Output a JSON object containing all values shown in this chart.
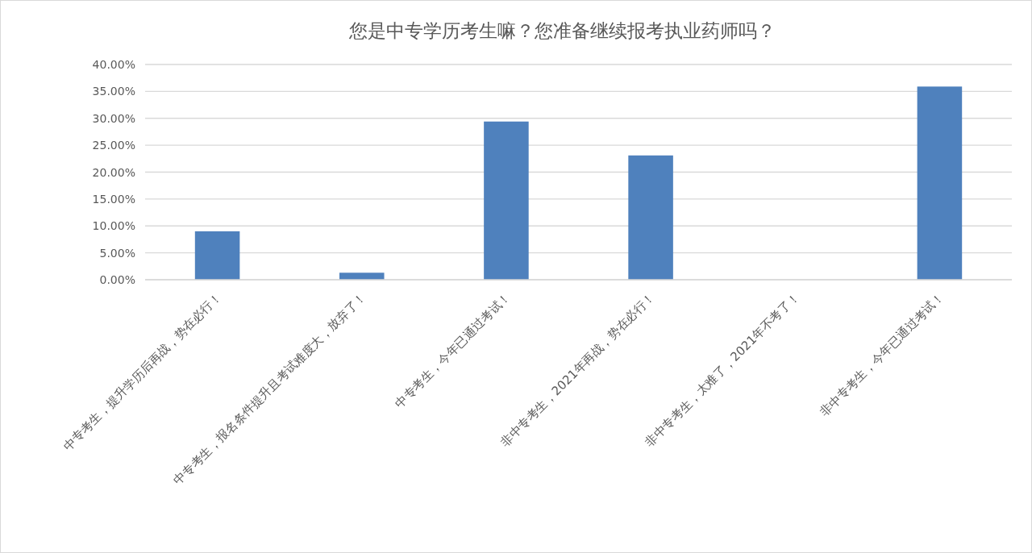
{
  "chart_data": {
    "type": "bar",
    "title": "您是中专学历考生嘛？您准备继续报考执业药师吗？",
    "categories": [
      "中专考生，提升学历后再战，势在必行！",
      "中专考生，报名条件提升且考试难度大，放弃了！",
      "中专考生，今年已通过考试！",
      "非中专考生，2021年再战，势在必行！",
      "非中专考生，太难了，2021年不考了！",
      "非中专考生，今年已通过考试！"
    ],
    "values": [
      9.0,
      1.3,
      29.4,
      23.1,
      0,
      35.9
    ],
    "color": "#4f81bd",
    "ylim": [
      0,
      40
    ],
    "yticks": [
      {
        "value": 0,
        "label": "0.00%"
      },
      {
        "value": 5,
        "label": "5.00%"
      },
      {
        "value": 10,
        "label": "10.00%"
      },
      {
        "value": 15,
        "label": "15.00%"
      },
      {
        "value": 20,
        "label": "20.00%"
      },
      {
        "value": 25,
        "label": "25.00%"
      },
      {
        "value": 30,
        "label": "30.00%"
      },
      {
        "value": 35,
        "label": "35.00%"
      },
      {
        "value": 40,
        "label": "40.00%"
      }
    ],
    "grid": "y"
  }
}
